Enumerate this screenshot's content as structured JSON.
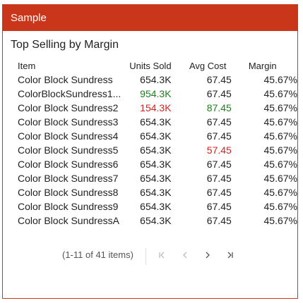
{
  "header": {
    "title": "Sample"
  },
  "grid": {
    "title": "Top Selling by Margin",
    "columns": [
      "Item",
      "Units Sold",
      "Avg Cost",
      "Margin"
    ],
    "rows": [
      {
        "item": "Color Block Sundress",
        "units": "654.3K",
        "cost": "67.45",
        "margin": "45.67%"
      },
      {
        "item": "ColorBlockSundress1...",
        "units": "954.3K",
        "cost": "67.45",
        "margin": "45.67%"
      },
      {
        "item": "Color Block Sundress2",
        "units": "154.3K",
        "cost": "87.45",
        "margin": "45.67%"
      },
      {
        "item": "Color Block Sundress3",
        "units": "654.3K",
        "cost": "67.45",
        "margin": "45.67%"
      },
      {
        "item": "Color Block Sundress4",
        "units": "654.3K",
        "cost": "67.45",
        "margin": "45.67%"
      },
      {
        "item": "Color Block Sundress5",
        "units": "654.3K",
        "cost": "57.45",
        "margin": "45.67%"
      },
      {
        "item": "Color Block Sundress6",
        "units": "654.3K",
        "cost": "67.45",
        "margin": "45.67%"
      },
      {
        "item": "Color Block Sundress7",
        "units": "654.3K",
        "cost": "67.45",
        "margin": "45.67%"
      },
      {
        "item": "Color Block Sundress8",
        "units": "654.3K",
        "cost": "67.45",
        "margin": "45.67%"
      },
      {
        "item": "Color Block Sundress9",
        "units": "654.3K",
        "cost": "67.45",
        "margin": "45.67%"
      },
      {
        "item": "Color Block SundressA",
        "units": "654.3K",
        "cost": "67.45",
        "margin": "45.67%"
      }
    ]
  },
  "pager": {
    "info": "(1-11 of 41 items)",
    "first_icon": "first-page-icon",
    "prev_icon": "prev-page-icon",
    "next_icon": "next-page-icon",
    "last_icon": "last-page-icon"
  },
  "colors": {
    "brand": "#c9361a",
    "positive": "#1a7f1a",
    "negative": "#d42020"
  }
}
